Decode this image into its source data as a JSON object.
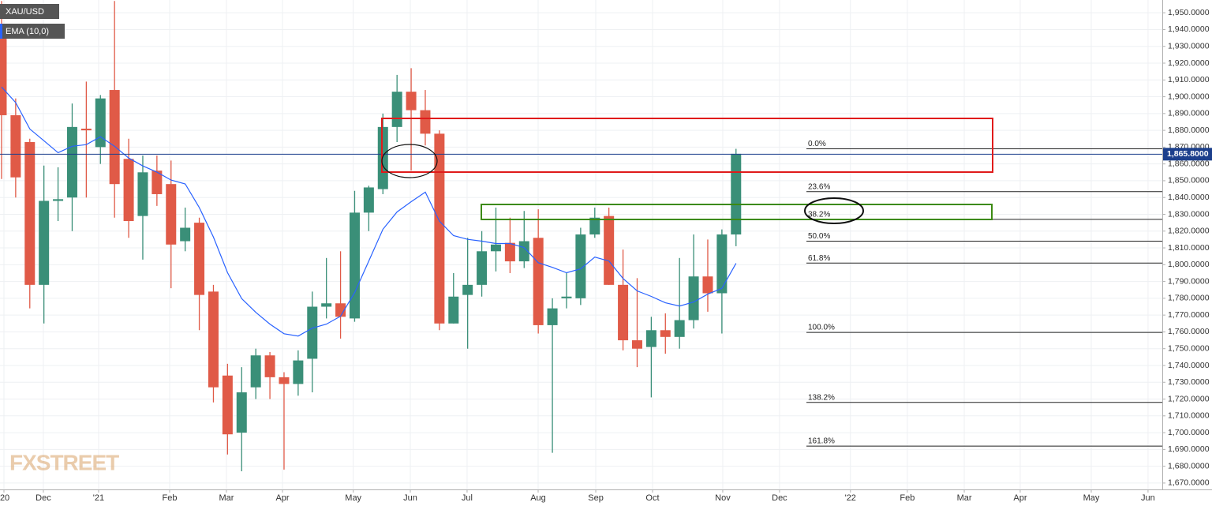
{
  "chart_data": {
    "type": "candlestick",
    "symbol": "XAU/USD",
    "watermark": "FXSTREET",
    "up_color": "#3a8f78",
    "down_color": "#e05a47",
    "x": [
      0,
      1,
      2,
      3,
      4,
      5,
      6,
      7,
      8,
      9,
      10,
      11,
      12,
      13,
      14,
      15,
      16,
      17,
      18,
      19,
      20,
      21,
      22,
      23,
      24,
      25,
      26,
      27,
      28,
      29,
      30,
      31,
      32,
      33,
      34,
      35,
      36,
      37,
      38,
      39,
      40,
      41,
      42,
      43,
      44,
      45,
      46,
      47,
      48,
      49,
      50,
      51,
      52
    ],
    "open": [
      1940,
      1889,
      1873,
      1788,
      1838,
      1840,
      1881,
      1870,
      1904,
      1863,
      1829,
      1856,
      1848,
      1814,
      1825,
      1784,
      1734,
      1700,
      1727,
      1746,
      1733,
      1729,
      1744,
      1775,
      1777,
      1768,
      1831,
      1845,
      1882,
      1903,
      1892,
      1878,
      1765,
      1782,
      1788,
      1808,
      1813,
      1802,
      1816,
      1764,
      1780,
      1780,
      1818,
      1829,
      1788,
      1755,
      1751,
      1761,
      1757,
      1767,
      1793,
      1783,
      1818
    ],
    "high": [
      1957,
      1899,
      1875,
      1859,
      1858,
      1896,
      1909,
      1901,
      1957,
      1875,
      1865,
      1865,
      1862,
      1834,
      1828,
      1788,
      1741,
      1739,
      1750,
      1748,
      1736,
      1749,
      1784,
      1804,
      1808,
      1844,
      1847,
      1890,
      1913,
      1917,
      1904,
      1880,
      1795,
      1816,
      1820,
      1834,
      1828,
      1832,
      1833,
      1780,
      1795,
      1822,
      1834,
      1834,
      1809,
      1792,
      1769,
      1771,
      1804,
      1818,
      1815,
      1821,
      1869
    ],
    "low": [
      1851,
      1840,
      1774,
      1765,
      1826,
      1820,
      1840,
      1860,
      1828,
      1816,
      1803,
      1835,
      1786,
      1808,
      1761,
      1718,
      1687,
      1677,
      1720,
      1720,
      1678,
      1722,
      1724,
      1768,
      1756,
      1766,
      1820,
      1842,
      1873,
      1856,
      1871,
      1761,
      1765,
      1750,
      1781,
      1796,
      1795,
      1798,
      1759,
      1688,
      1774,
      1776,
      1816,
      1788,
      1749,
      1739,
      1721,
      1747,
      1750,
      1762,
      1772,
      1759,
      1811
    ],
    "close": [
      1889,
      1852,
      1788,
      1838,
      1839,
      1882,
      1880,
      1899,
      1848,
      1826,
      1855,
      1842,
      1812,
      1822,
      1782,
      1727,
      1699,
      1724,
      1746,
      1733,
      1729,
      1743,
      1775,
      1777,
      1769,
      1831,
      1846,
      1882,
      1903,
      1892,
      1878,
      1765,
      1781,
      1788,
      1808,
      1812,
      1802,
      1814,
      1764,
      1774,
      1781,
      1818,
      1828,
      1788,
      1755,
      1750,
      1761,
      1757,
      1767,
      1793,
      1783,
      1818,
      1866
    ],
    "ema": {
      "name": "EMA (10,0)",
      "color": "#2962ff",
      "values": [
        1905.8,
        1896.5,
        1880.8,
        1873.8,
        1866.7,
        1870.5,
        1871.5,
        1876.2,
        1870.5,
        1863.5,
        1858.8,
        1855.1,
        1850.4,
        1848.1,
        1834,
        1816.4,
        1795.2,
        1779.8,
        1771.6,
        1764.6,
        1758.9,
        1757.5,
        1762.2,
        1764.6,
        1769.3,
        1783.4,
        1802.2,
        1821.1,
        1831.4,
        1837.5,
        1843.2,
        1825.9,
        1817.3,
        1815.1,
        1814,
        1812.6,
        1812.6,
        1810.2,
        1801.2,
        1798.4,
        1795.2,
        1797.5,
        1804.5,
        1802.2,
        1791.8,
        1784.4,
        1781.1,
        1777.3,
        1775.4,
        1777.8,
        1782.5,
        1785.9,
        1800.8
      ]
    },
    "last_price": {
      "value": 1865.8,
      "label": "1,865.8000"
    },
    "fib_levels": [
      {
        "label": "0.0%",
        "price": 1869
      },
      {
        "label": "23.6%",
        "price": 1843.5
      },
      {
        "label": "38.2%",
        "price": 1827
      },
      {
        "label": "50.0%",
        "price": 1814
      },
      {
        "label": "61.8%",
        "price": 1801
      },
      {
        "label": "100.0%",
        "price": 1759.7
      },
      {
        "label": "138.2%",
        "price": 1718
      },
      {
        "label": "161.8%",
        "price": 1692
      }
    ],
    "xlim": [
      -0.11,
      82.18
    ],
    "ylim": [
      1661.5,
      1957.6
    ],
    "grid": true,
    "xticks": [
      {
        "value": 0.17,
        "label": "'20"
      },
      {
        "value": 2.96,
        "label": "Dec"
      },
      {
        "value": 6.87,
        "label": "'21"
      },
      {
        "value": 11.9,
        "label": "Feb"
      },
      {
        "value": 15.92,
        "label": "Mar"
      },
      {
        "value": 19.89,
        "label": "Apr"
      },
      {
        "value": 24.9,
        "label": "May"
      },
      {
        "value": 28.94,
        "label": "Jun"
      },
      {
        "value": 32.96,
        "label": "Jul"
      },
      {
        "value": 37.99,
        "label": "Aug"
      },
      {
        "value": 42.07,
        "label": "Sep"
      },
      {
        "value": 46.09,
        "label": "Oct"
      },
      {
        "value": 51.06,
        "label": "Nov"
      },
      {
        "value": 55.08,
        "label": "Dec"
      },
      {
        "value": 60.1,
        "label": "'22"
      },
      {
        "value": 64.13,
        "label": "Feb"
      },
      {
        "value": 68.16,
        "label": "Mar"
      },
      {
        "value": 72.12,
        "label": "Apr"
      },
      {
        "value": 77.15,
        "label": "May"
      },
      {
        "value": 81.17,
        "label": "Jun"
      }
    ],
    "yticks": [
      {
        "value": 1670,
        "label": "1,670.0000"
      },
      {
        "value": 1680,
        "label": "1,680.0000"
      },
      {
        "value": 1690,
        "label": "1,690.0000"
      },
      {
        "value": 1700,
        "label": "1,700.0000"
      },
      {
        "value": 1710,
        "label": "1,710.0000"
      },
      {
        "value": 1720,
        "label": "1,720.0000"
      },
      {
        "value": 1730,
        "label": "1,730.0000"
      },
      {
        "value": 1740,
        "label": "1,740.0000"
      },
      {
        "value": 1750,
        "label": "1,750.0000"
      },
      {
        "value": 1760,
        "label": "1,760.0000"
      },
      {
        "value": 1770,
        "label": "1,770.0000"
      },
      {
        "value": 1780,
        "label": "1,780.0000"
      },
      {
        "value": 1790,
        "label": "1,790.0000"
      },
      {
        "value": 1800,
        "label": "1,800.0000"
      },
      {
        "value": 1810,
        "label": "1,810.0000"
      },
      {
        "value": 1820,
        "label": "1,820.0000"
      },
      {
        "value": 1830,
        "label": "1,830.0000"
      },
      {
        "value": 1840,
        "label": "1,840.0000"
      },
      {
        "value": 1850,
        "label": "1,850.0000"
      },
      {
        "value": 1860,
        "label": "1,860.0000"
      },
      {
        "value": 1870,
        "label": "1,870.0000"
      },
      {
        "value": 1880,
        "label": "1,880.0000"
      },
      {
        "value": 1890,
        "label": "1,890.0000"
      },
      {
        "value": 1900,
        "label": "1,900.0000"
      },
      {
        "value": 1910,
        "label": "1,910.0000"
      },
      {
        "value": 1920,
        "label": "1,920.0000"
      },
      {
        "value": 1930,
        "label": "1,930.0000"
      },
      {
        "value": 1940,
        "label": "1,940.0000"
      },
      {
        "value": 1950,
        "label": "1,950.0000"
      }
    ]
  }
}
